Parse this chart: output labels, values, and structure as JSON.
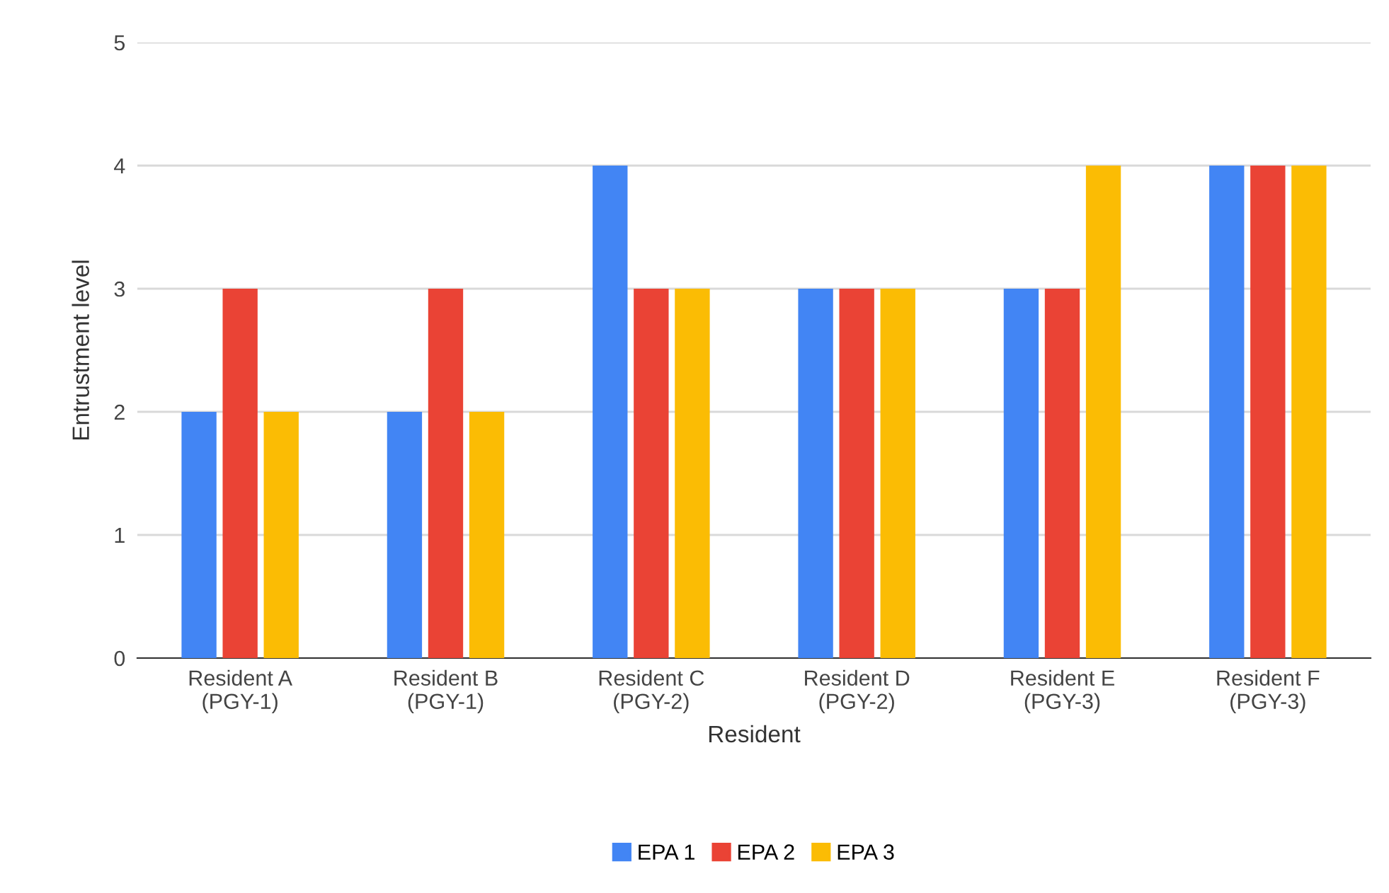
{
  "chart_data": {
    "type": "bar",
    "xlabel": "Resident",
    "ylabel": "Entrustment level",
    "categories": [
      "Resident A\n(PGY-1)",
      "Resident B\n(PGY-1)",
      "Resident C\n(PGY-2)",
      "Resident D\n(PGY-2)",
      "Resident E\n(PGY-3)",
      "Resident F\n(PGY-3)"
    ],
    "series": [
      {
        "name": "EPA 1",
        "color": "#4285f4",
        "values": [
          2,
          2,
          4,
          3,
          3,
          4
        ]
      },
      {
        "name": "EPA 2",
        "color": "#ea4335",
        "values": [
          3,
          3,
          3,
          3,
          3,
          4
        ]
      },
      {
        "name": "EPA 3",
        "color": "#fbbc04",
        "values": [
          2,
          2,
          3,
          3,
          4,
          4
        ]
      }
    ],
    "ylim": [
      0,
      5
    ],
    "yticks": [
      0,
      1,
      2,
      3,
      4,
      5
    ],
    "grid": "y",
    "legend": "bottom"
  }
}
